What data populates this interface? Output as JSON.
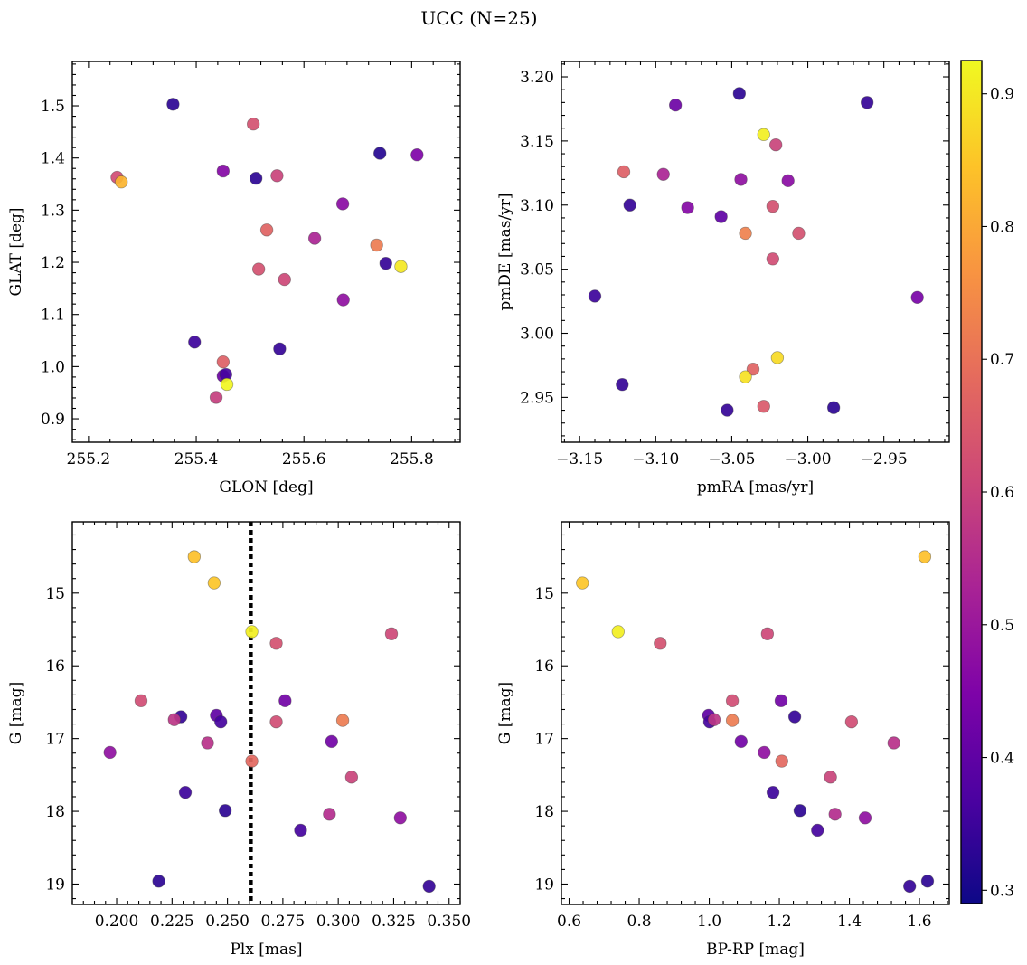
{
  "figure": {
    "title": "UCC (N=25)"
  },
  "colorbar": {
    "min": 0.29,
    "max": 0.925,
    "ticks": [
      0.3,
      0.4,
      0.5,
      0.6,
      0.7,
      0.8,
      0.9
    ],
    "tick_labels": [
      "0.3",
      "0.4",
      "0.5",
      "0.6",
      "0.7",
      "0.8",
      "0.9"
    ],
    "colormap": "plasma"
  },
  "chart_data": [
    {
      "type": "scatter",
      "panel": "top-left",
      "xlabel": "GLON [deg]",
      "ylabel": "GLAT [deg]",
      "xlim": [
        255.17,
        255.89
      ],
      "ylim": [
        0.855,
        1.585
      ],
      "xticks": [
        255.2,
        255.4,
        255.6,
        255.8
      ],
      "xtick_labels": [
        "255.2",
        "255.4",
        "255.6",
        "255.8"
      ],
      "yticks": [
        0.9,
        1.0,
        1.1,
        1.2,
        1.3,
        1.4,
        1.5
      ],
      "ytick_labels": [
        "0.9",
        "1.0",
        "1.1",
        "1.2",
        "1.3",
        "1.4",
        "1.5"
      ],
      "x": [
        255.357,
        255.506,
        255.253,
        255.261,
        255.45,
        255.511,
        255.55,
        255.741,
        255.81,
        255.672,
        255.531,
        255.62,
        255.735,
        255.752,
        255.78,
        255.516,
        255.564,
        255.673,
        255.397,
        255.45,
        255.555,
        255.45,
        255.455,
        255.457,
        255.437
      ],
      "y": [
        1.503,
        1.465,
        1.363,
        1.354,
        1.375,
        1.361,
        1.366,
        1.409,
        1.406,
        1.312,
        1.262,
        1.246,
        1.233,
        1.198,
        1.192,
        1.187,
        1.167,
        1.128,
        1.047,
        1.009,
        1.034,
        0.982,
        0.985,
        0.966,
        0.941
      ],
      "c": [
        0.33,
        0.63,
        0.62,
        0.82,
        0.46,
        0.33,
        0.6,
        0.32,
        0.45,
        0.47,
        0.67,
        0.53,
        0.72,
        0.34,
        0.9,
        0.63,
        0.61,
        0.48,
        0.35,
        0.66,
        0.34,
        0.42,
        0.36,
        0.92,
        0.59
      ]
    },
    {
      "type": "scatter",
      "panel": "top-right",
      "xlabel": "pmRA [mas/yr]",
      "ylabel": "pmDE [mas/yr]",
      "xlim": [
        -3.162,
        -2.907
      ],
      "ylim": [
        2.915,
        3.212
      ],
      "xticks": [
        -3.15,
        -3.1,
        -3.05,
        -3.0,
        -2.95
      ],
      "xtick_labels": [
        "−3.15",
        "−3.10",
        "−3.05",
        "−3.00",
        "−2.95"
      ],
      "yticks": [
        2.95,
        3.0,
        3.05,
        3.1,
        3.15,
        3.2
      ],
      "ytick_labels": [
        "2.95",
        "3.00",
        "3.05",
        "3.10",
        "3.15",
        "3.20"
      ],
      "x": [
        -3.045,
        -3.087,
        -2.961,
        -3.029,
        -3.021,
        -3.121,
        -3.095,
        -3.044,
        -3.013,
        -3.117,
        -3.079,
        -3.023,
        -3.057,
        -3.041,
        -3.006,
        -3.023,
        -3.14,
        -2.928,
        -3.02,
        -3.036,
        -3.041,
        -3.122,
        -3.053,
        -3.029,
        -2.983
      ],
      "y": [
        3.187,
        3.178,
        3.18,
        3.155,
        3.147,
        3.126,
        3.124,
        3.12,
        3.119,
        3.1,
        3.098,
        3.099,
        3.091,
        3.078,
        3.078,
        3.058,
        3.029,
        3.028,
        2.981,
        2.972,
        2.966,
        2.96,
        2.94,
        2.943,
        2.942
      ],
      "c": [
        0.33,
        0.42,
        0.34,
        0.91,
        0.6,
        0.66,
        0.53,
        0.48,
        0.47,
        0.34,
        0.46,
        0.63,
        0.4,
        0.73,
        0.63,
        0.62,
        0.35,
        0.44,
        0.88,
        0.67,
        0.89,
        0.34,
        0.34,
        0.65,
        0.33
      ]
    },
    {
      "type": "scatter",
      "panel": "bottom-left",
      "xlabel": "Plx [mas]",
      "ylabel": "G [mag]",
      "xlim": [
        0.18,
        0.355
      ],
      "ylim": [
        19.28,
        14.02
      ],
      "y_inverted": true,
      "xticks": [
        0.2,
        0.225,
        0.25,
        0.275,
        0.3,
        0.325,
        0.35
      ],
      "xtick_labels": [
        "0.200",
        "0.225",
        "0.250",
        "0.275",
        "0.300",
        "0.325",
        "0.350"
      ],
      "yticks": [
        15,
        16,
        17,
        18,
        19
      ],
      "ytick_labels": [
        "15",
        "16",
        "17",
        "18",
        "19"
      ],
      "vline_x": 0.2605,
      "x": [
        0.235,
        0.244,
        0.261,
        0.272,
        0.324,
        0.211,
        0.276,
        0.302,
        0.229,
        0.226,
        0.245,
        0.247,
        0.272,
        0.241,
        0.197,
        0.297,
        0.261,
        0.306,
        0.231,
        0.249,
        0.296,
        0.328,
        0.283,
        0.219,
        0.341
      ],
      "y": [
        14.5,
        14.86,
        15.53,
        15.69,
        15.56,
        16.48,
        16.48,
        16.75,
        16.7,
        16.74,
        16.68,
        16.77,
        16.77,
        17.06,
        17.19,
        17.04,
        17.31,
        17.53,
        17.74,
        17.99,
        18.04,
        18.09,
        18.26,
        18.96,
        19.03
      ],
      "c": [
        0.84,
        0.85,
        0.91,
        0.63,
        0.61,
        0.62,
        0.43,
        0.72,
        0.34,
        0.57,
        0.4,
        0.36,
        0.62,
        0.56,
        0.48,
        0.43,
        0.68,
        0.6,
        0.35,
        0.33,
        0.55,
        0.48,
        0.36,
        0.33,
        0.34
      ]
    },
    {
      "type": "scatter",
      "panel": "bottom-right",
      "xlabel": "BP-RP [mag]",
      "ylabel": "G [mag]",
      "xlim": [
        0.578,
        1.685
      ],
      "ylim": [
        19.28,
        14.02
      ],
      "y_inverted": true,
      "xticks": [
        0.6,
        0.8,
        1.0,
        1.2,
        1.4,
        1.6
      ],
      "xtick_labels": [
        "0.6",
        "0.8",
        "1.0",
        "1.2",
        "1.4",
        "1.6"
      ],
      "yticks": [
        15,
        16,
        17,
        18,
        19
      ],
      "ytick_labels": [
        "15",
        "16",
        "17",
        "18",
        "19"
      ],
      "x": [
        1.615,
        0.638,
        0.74,
        0.86,
        1.166,
        1.066,
        1.205,
        1.066,
        0.998,
        1.001,
        1.014,
        1.244,
        1.406,
        1.527,
        1.091,
        1.157,
        1.207,
        1.346,
        1.182,
        1.259,
        1.359,
        1.445,
        1.309,
        1.572,
        1.623
      ],
      "y": [
        14.5,
        14.86,
        15.53,
        15.69,
        15.56,
        16.48,
        16.48,
        16.75,
        16.68,
        16.77,
        16.74,
        16.7,
        16.77,
        17.06,
        17.04,
        17.19,
        17.31,
        17.53,
        17.74,
        17.99,
        18.04,
        18.09,
        18.26,
        19.03,
        18.96
      ],
      "c": [
        0.84,
        0.85,
        0.91,
        0.63,
        0.61,
        0.62,
        0.43,
        0.72,
        0.4,
        0.36,
        0.57,
        0.34,
        0.62,
        0.56,
        0.43,
        0.48,
        0.68,
        0.6,
        0.35,
        0.33,
        0.55,
        0.48,
        0.36,
        0.34,
        0.33
      ]
    }
  ]
}
